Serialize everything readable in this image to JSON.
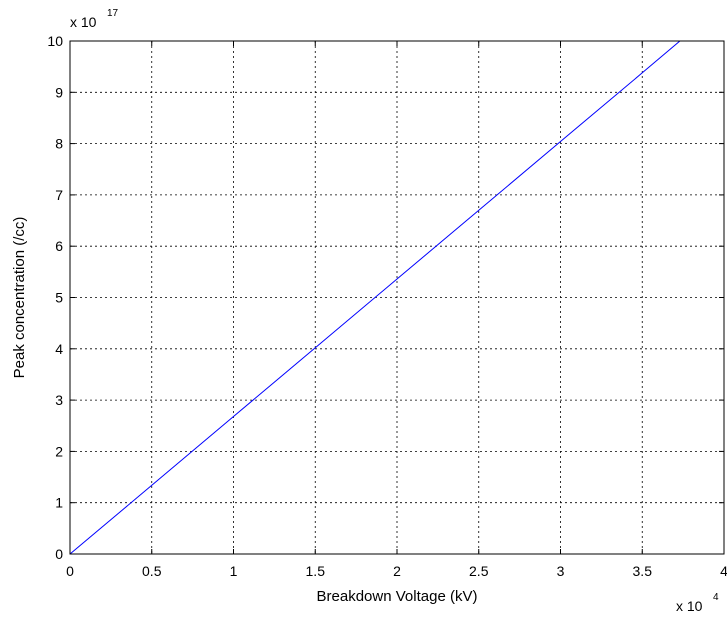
{
  "chart_data": {
    "type": "line",
    "title": "",
    "xlabel": "Breakdown Voltage (kV)",
    "ylabel": "Peak concentration (/cc)",
    "x_multiplier": "x 10",
    "x_multiplier_exp": "4",
    "y_multiplier": "x 10",
    "y_multiplier_exp": "17",
    "xlim": [
      0,
      4
    ],
    "ylim": [
      0,
      10
    ],
    "x_ticks": [
      "0",
      "0.5",
      "1",
      "1.5",
      "2",
      "2.5",
      "3",
      "3.5",
      "4"
    ],
    "y_ticks": [
      "0",
      "1",
      "2",
      "3",
      "4",
      "5",
      "6",
      "7",
      "8",
      "9",
      "10"
    ],
    "x_tick_values": [
      0,
      0.5,
      1,
      1.5,
      2,
      2.5,
      3,
      3.5,
      4
    ],
    "y_tick_values": [
      0,
      1,
      2,
      3,
      4,
      5,
      6,
      7,
      8,
      9,
      10
    ],
    "grid": true,
    "series": [
      {
        "color": "#0000ff",
        "x": [
          0,
          0.5,
          1,
          1.5,
          2,
          2.5,
          3,
          3.5,
          3.73
        ],
        "y": [
          0,
          1.34,
          2.68,
          4.02,
          5.36,
          6.7,
          8.04,
          9.38,
          10
        ]
      }
    ]
  }
}
